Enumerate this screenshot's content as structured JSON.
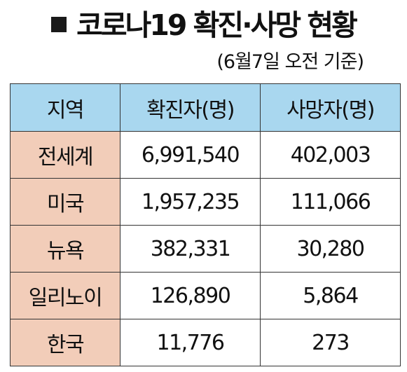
{
  "title": "코로나19 확진·사망 현황",
  "subtitle": "(6월7일 오전 기준)",
  "colors": {
    "header_bg": "#a9d7ef",
    "region_bg": "#f2cdb9",
    "border": "#333333"
  },
  "table": {
    "headers": [
      "지역",
      "확진자(명)",
      "사망자(명)"
    ],
    "rows": [
      {
        "region": "전세계",
        "confirmed": "6,991,540",
        "deaths": "402,003"
      },
      {
        "region": "미국",
        "confirmed": "1,957,235",
        "deaths": "111,066"
      },
      {
        "region": "뉴욕",
        "confirmed": "382,331",
        "deaths": "30,280"
      },
      {
        "region": "일리노이",
        "confirmed": "126,890",
        "deaths": "5,864"
      },
      {
        "region": "한국",
        "confirmed": "11,776",
        "deaths": "273"
      }
    ]
  }
}
